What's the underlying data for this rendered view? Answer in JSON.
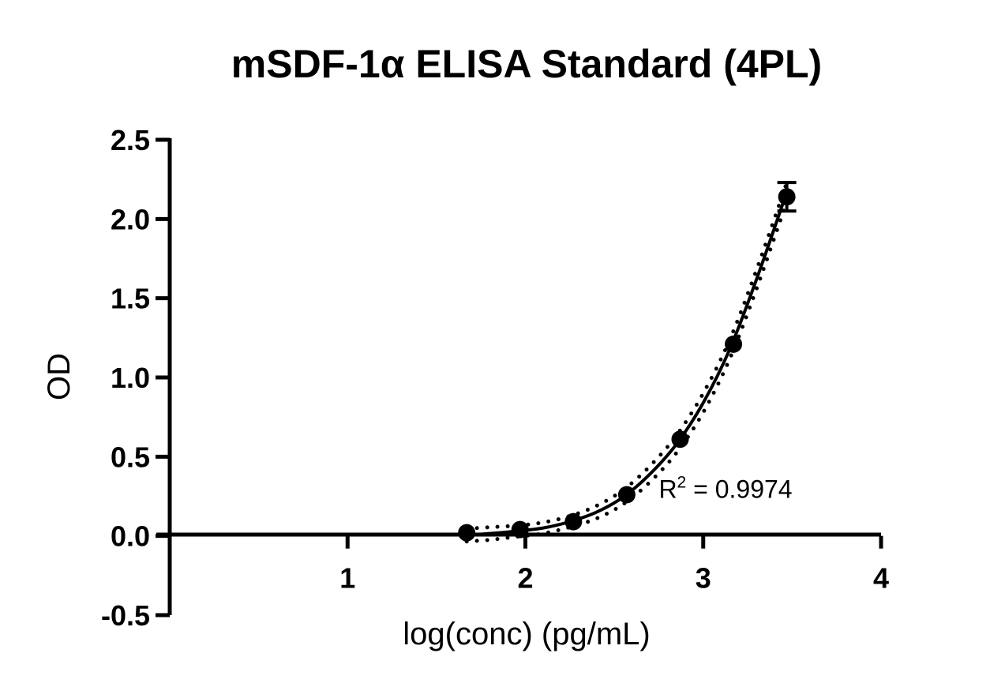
{
  "chart_data": {
    "type": "scatter",
    "title": "mSDF-1α ELISA Standard (4PL)",
    "xlabel": "log(conc) (pg/mL)",
    "ylabel": "OD",
    "xlim": [
      0,
      4
    ],
    "ylim": [
      -0.5,
      2.5
    ],
    "xticks": [
      1,
      2,
      3,
      4
    ],
    "xtick_labels": [
      "1",
      "2",
      "3",
      "4"
    ],
    "yticks": [
      -0.5,
      0.0,
      0.5,
      1.0,
      1.5,
      2.0,
      2.5
    ],
    "ytick_labels": [
      "-0.5",
      "0.0",
      "0.5",
      "1.0",
      "1.5",
      "2.0",
      "2.5"
    ],
    "series": [
      {
        "x": [
          1.67,
          1.97,
          2.27,
          2.57,
          2.87,
          3.17,
          3.47
        ],
        "y": [
          0.02,
          0.04,
          0.09,
          0.26,
          0.61,
          1.21,
          2.14
        ],
        "yerr": [
          0.0,
          0.0,
          0.0,
          0.0,
          0.0,
          0.0,
          0.09
        ]
      }
    ],
    "fit_curve": {
      "x": [
        1.67,
        1.8,
        1.95,
        2.1,
        2.25,
        2.4,
        2.55,
        2.7,
        2.85,
        3.0,
        3.15,
        3.3,
        3.47
      ],
      "y": [
        0.005,
        0.015,
        0.03,
        0.05,
        0.09,
        0.15,
        0.245,
        0.39,
        0.58,
        0.84,
        1.18,
        1.62,
        2.17
      ]
    },
    "confidence_band": {
      "upper": {
        "x": [
          1.67,
          1.8,
          1.95,
          2.1,
          2.25,
          2.4,
          2.55,
          2.7,
          2.85,
          3.0,
          3.15,
          3.3,
          3.47
        ],
        "y": [
          0.045,
          0.055,
          0.065,
          0.085,
          0.125,
          0.19,
          0.29,
          0.44,
          0.635,
          0.9,
          1.24,
          1.68,
          2.23
        ]
      },
      "lower": {
        "x": [
          1.67,
          1.8,
          1.95,
          2.1,
          2.25,
          2.4,
          2.55,
          2.7,
          2.85,
          3.0,
          3.15,
          3.3,
          3.47
        ],
        "y": [
          -0.035,
          -0.025,
          -0.005,
          0.015,
          0.055,
          0.11,
          0.2,
          0.34,
          0.525,
          0.78,
          1.12,
          1.56,
          2.11
        ]
      }
    },
    "annotation": {
      "prefix": "R",
      "superscript": "2",
      "suffix": " = 0.9974",
      "x": 2.75,
      "y": 0.3
    },
    "grid": false,
    "legend": "none"
  }
}
